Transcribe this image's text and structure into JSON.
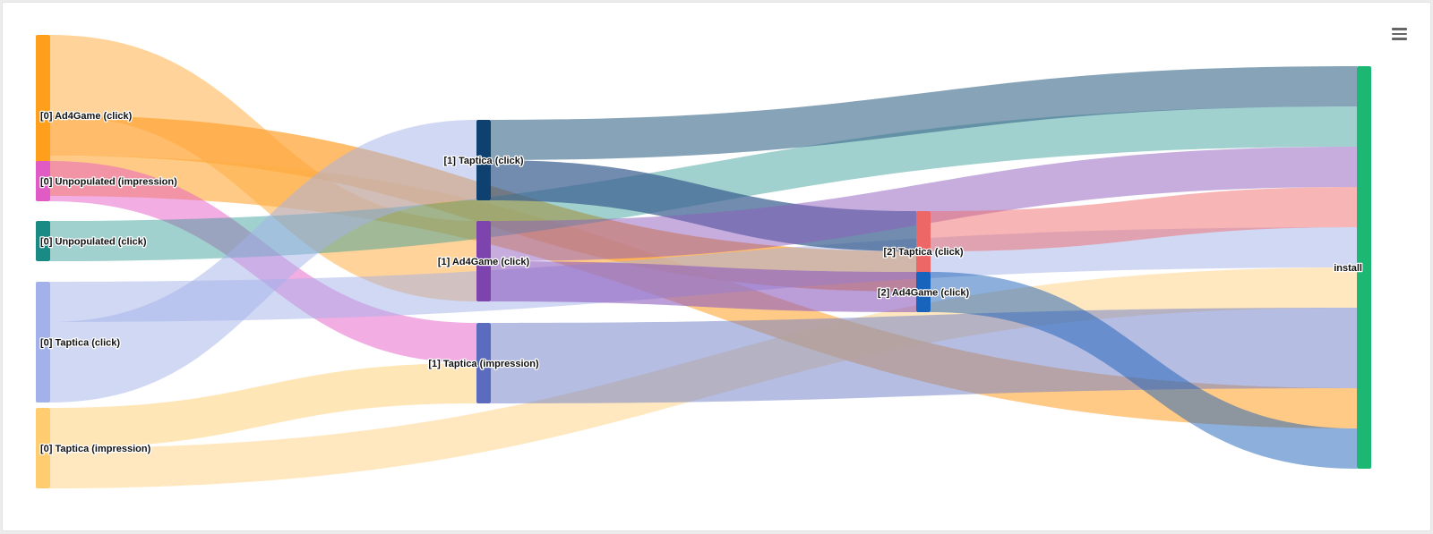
{
  "menu": {
    "icon": "hamburger-icon"
  },
  "chart_data": {
    "type": "sankey",
    "title": "",
    "columns": 4,
    "nodes": [
      {
        "id": "ad4game_click_0",
        "label": "[0] Ad4Game (click)",
        "column": 0,
        "color": "#FF9F1C"
      },
      {
        "id": "unpop_impr_0",
        "label": "[0] Unpopulated (impression)",
        "column": 0,
        "color": "#E05BC3"
      },
      {
        "id": "unpop_click_0",
        "label": "[0] Unpopulated (click)",
        "column": 0,
        "color": "#1A8A84"
      },
      {
        "id": "taptica_click_0",
        "label": "[0] Taptica (click)",
        "column": 0,
        "color": "#A3B1EA"
      },
      {
        "id": "taptica_impr_0",
        "label": "[0] Taptica (impression)",
        "column": 0,
        "color": "#FFCD70"
      },
      {
        "id": "taptica_click_1",
        "label": "[1] Taptica (click)",
        "column": 1,
        "color": "#0E4170"
      },
      {
        "id": "ad4game_click_1",
        "label": "[1] Ad4Game (click)",
        "column": 1,
        "color": "#7D44AE"
      },
      {
        "id": "taptica_impr_1",
        "label": "[1] Taptica (impression)",
        "column": 1,
        "color": "#5B6CBE"
      },
      {
        "id": "taptica_click_2",
        "label": "[2] Taptica (click)",
        "column": 2,
        "color": "#EE6767"
      },
      {
        "id": "ad4game_click_2",
        "label": "[2] Ad4Game (click)",
        "column": 2,
        "color": "#1863BB"
      },
      {
        "id": "install",
        "label": "install",
        "column": 3,
        "color": "#1DB774"
      }
    ],
    "links": [
      {
        "source": "ad4game_click_0",
        "target": "ad4game_click_1",
        "value": 2,
        "color": "#FFAE45",
        "opacity": 0.55
      },
      {
        "source": "ad4game_click_0",
        "target": "taptica_click_2",
        "value": 1,
        "color": "#FFA53A",
        "opacity": 0.75
      },
      {
        "source": "ad4game_click_0",
        "target": "install",
        "value": 1,
        "color": "#FFAE45",
        "opacity": 0.65
      },
      {
        "source": "unpop_impr_0",
        "target": "taptica_impr_1",
        "value": 1,
        "color": "#E65CC6",
        "opacity": 0.5
      },
      {
        "source": "unpop_click_0",
        "target": "install",
        "value": 1,
        "color": "#2E9A95",
        "opacity": 0.45
      },
      {
        "source": "taptica_click_0",
        "target": "install",
        "value": 1,
        "color": "#A3B1EA",
        "opacity": 0.5
      },
      {
        "source": "taptica_click_0",
        "target": "taptica_click_1",
        "value": 2,
        "color": "#A3B1EA",
        "opacity": 0.5
      },
      {
        "source": "taptica_impr_0",
        "target": "taptica_impr_1",
        "value": 1,
        "color": "#FFCD70",
        "opacity": 0.5
      },
      {
        "source": "taptica_impr_0",
        "target": "install",
        "value": 1,
        "color": "#FFCD70",
        "opacity": 0.45
      },
      {
        "source": "taptica_click_1",
        "target": "install",
        "value": 1,
        "color": "#3E6A8C",
        "opacity": 0.62
      },
      {
        "source": "taptica_click_1",
        "target": "taptica_click_2",
        "value": 1,
        "color": "#3A5F8F",
        "opacity": 0.72
      },
      {
        "source": "ad4game_click_1",
        "target": "install",
        "value": 1,
        "color": "#8D5BBE",
        "opacity": 0.5
      },
      {
        "source": "ad4game_click_1",
        "target": "ad4game_click_2",
        "value": 1,
        "color": "#8D5BBE",
        "opacity": 0.6
      },
      {
        "source": "taptica_impr_1",
        "target": "install",
        "value": 2,
        "color": "#6C7BC8",
        "opacity": 0.5
      },
      {
        "source": "taptica_click_2",
        "target": "install",
        "value": 1,
        "color": "#F06B6B",
        "opacity": 0.5
      },
      {
        "source": "ad4game_click_2",
        "target": "install",
        "value": 1,
        "color": "#1C5FB8",
        "opacity": 0.5
      }
    ]
  }
}
